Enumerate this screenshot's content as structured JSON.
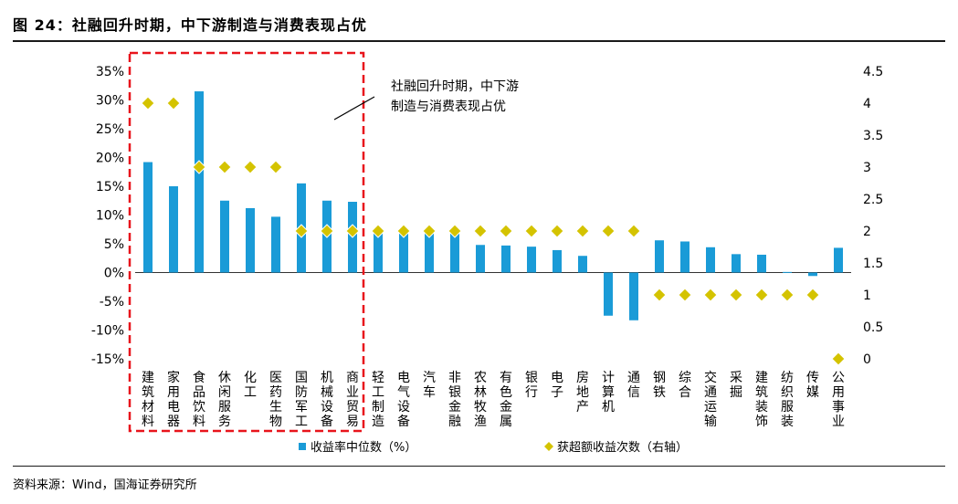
{
  "header": {
    "title": "图 24：社融回升时期，中下游制造与消费表现占优"
  },
  "footer": {
    "source": "资料来源：Wind，国海证券研究所"
  },
  "chart_data": {
    "type": "bar",
    "categories": [
      "建筑材料",
      "家用电器",
      "食品饮料",
      "休闲服务",
      "化工",
      "医药生物",
      "国防军工",
      "机械设备",
      "商业贸易",
      "轻工制造",
      "电气设备",
      "汽车",
      "非银金融",
      "农林牧渔",
      "有色金属",
      "银行",
      "电子",
      "房地产",
      "计算机",
      "通信",
      "钢铁",
      "综合",
      "交通运输",
      "采掘",
      "建筑装饰",
      "纺织服装",
      "传媒",
      "公用事业"
    ],
    "series": [
      {
        "name": "收益率中位数（%）",
        "type": "bar",
        "axis": "left",
        "color": "#1a9bd7",
        "values": [
          19.2,
          15.0,
          31.5,
          12.5,
          11.2,
          9.7,
          15.5,
          12.5,
          12.3,
          7.5,
          7.3,
          7.2,
          7.2,
          4.8,
          4.7,
          4.5,
          3.9,
          2.9,
          -7.5,
          -8.3,
          5.6,
          5.4,
          4.4,
          3.2,
          3.1,
          0.1,
          -0.6,
          4.3
        ]
      },
      {
        "name": "获超额收益次数（右轴）",
        "type": "scatter",
        "axis": "right",
        "color": "#d4c300",
        "values": [
          4,
          4,
          3,
          3,
          3,
          3,
          2,
          2,
          2,
          2,
          2,
          2,
          2,
          2,
          2,
          2,
          2,
          2,
          2,
          2,
          1,
          1,
          1,
          1,
          1,
          1,
          1,
          0
        ]
      }
    ],
    "y_left": {
      "min": -15,
      "max": 35,
      "step": 5,
      "ticks": [
        "-15%",
        "-10%",
        "-5%",
        "0%",
        "5%",
        "10%",
        "15%",
        "20%",
        "25%",
        "30%",
        "35%"
      ]
    },
    "y_right": {
      "min": 0,
      "max": 4.5,
      "step": 0.5,
      "ticks": [
        "0",
        "0.5",
        "1",
        "1.5",
        "2",
        "2.5",
        "3",
        "3.5",
        "4",
        "4.5"
      ]
    },
    "annotation": {
      "lines": [
        "社融回升时期，中下游",
        "制造与消费表现占优"
      ],
      "highlight_first_n": 9,
      "highlight_color": "#e8141c"
    },
    "legend": {
      "position": "bottom",
      "items": [
        "收益率中位数（%）",
        "获超额收益次数（右轴）"
      ]
    }
  }
}
